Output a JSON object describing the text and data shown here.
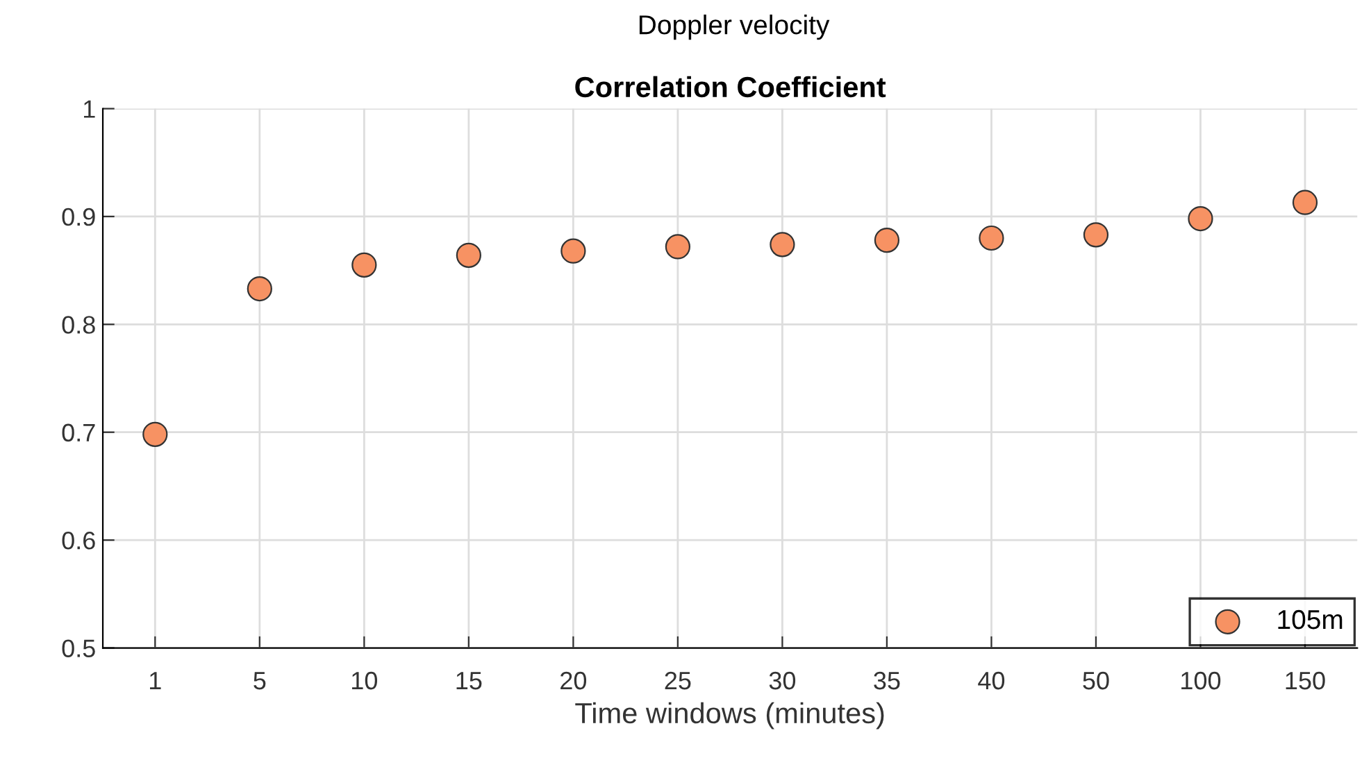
{
  "chart_data": {
    "type": "scatter",
    "title": "Doppler velocity",
    "subtitle": "Correlation Coefficient",
    "xlabel": "Time windows (minutes)",
    "categories": [
      "1",
      "5",
      "10",
      "15",
      "20",
      "25",
      "30",
      "35",
      "40",
      "50",
      "100",
      "150"
    ],
    "series": [
      {
        "name": "105m",
        "color": "#f79263",
        "values": [
          0.698,
          0.833,
          0.855,
          0.864,
          0.868,
          0.872,
          0.874,
          0.878,
          0.88,
          0.883,
          0.898,
          0.913
        ]
      }
    ],
    "ylim": [
      0.5,
      1
    ],
    "yticks": [
      0.5,
      0.6,
      0.7,
      0.8,
      0.9,
      1
    ],
    "grid": true,
    "legend": "bottom right",
    "marker": "circle"
  }
}
